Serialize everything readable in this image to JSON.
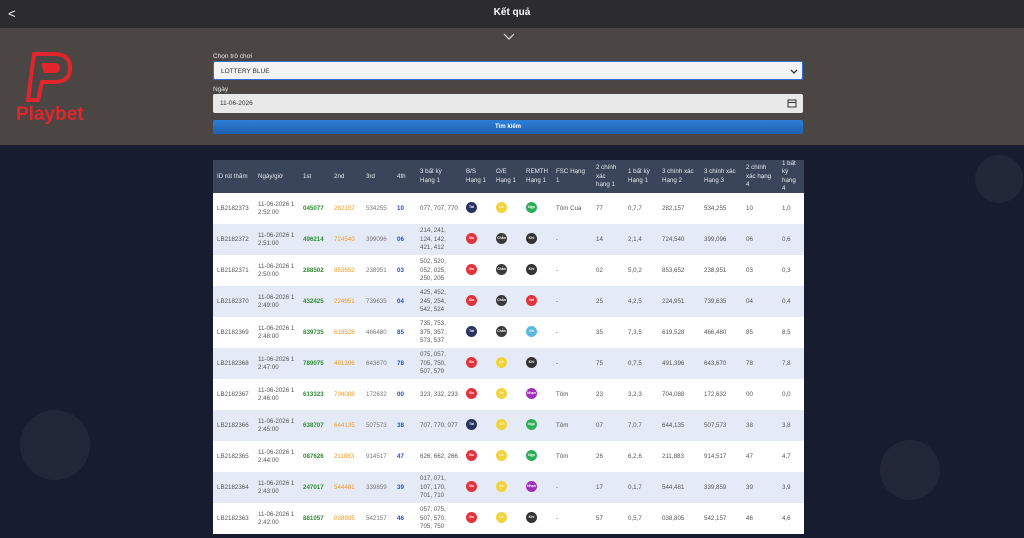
{
  "header": {
    "title": "Kết quả",
    "back": "<"
  },
  "brand": "Playbet",
  "form": {
    "game_label": "Chọn trò chơi",
    "game_value": "LOTTERY BLUE",
    "date_label": "Ngày",
    "date_value": "11-06-2026",
    "button": "Tìm kiếm"
  },
  "table": {
    "columns": [
      "ID rút thăm",
      "Ngày/giờ",
      "1st",
      "2nd",
      "3rd",
      "4th",
      "3 bất kỳ Hạng 1",
      "B/S Hạng 1",
      "O/E Hạng 1",
      "REMTH Hạng 1",
      "FSC Hạng 1",
      "2 chính xác hạng 1",
      "1 bất kỳ Hạng 1",
      "3 chính xác Hạng 2",
      "3 chính xác Hạng 3",
      "2 chính xác hạng 4",
      "1 bất kỳ hạng 4"
    ],
    "rows": [
      [
        "LB2182373",
        "11-06-2026 12:52:00",
        "045077",
        "282157",
        "534255",
        "10",
        "077, 707, 770",
        {
          "text": "Tài",
          "color": "#27325e"
        },
        {
          "text": "Lẻ",
          "color": "#f2d43a"
        },
        {
          "text": "Ngọ",
          "color": "#2fae5a"
        },
        "Tôm Cua",
        "77",
        "0,7,7",
        "282,157",
        "534,255",
        "10",
        "1,0"
      ],
      [
        "LB2182372",
        "11-06-2026 12:51:00",
        "496214",
        "724540",
        "399096",
        "06",
        "214, 241, 124, 142, 421, 412",
        {
          "text": "Xỉu",
          "color": "#e0333d"
        },
        {
          "text": "Chẵn",
          "color": "#3a3a3a"
        },
        {
          "text": "Khỉ",
          "color": "#333333"
        },
        "-",
        "14",
        "2,1,4",
        "724,540",
        "399,096",
        "06",
        "0,6"
      ],
      [
        "LB2182371",
        "11-06-2026 12:50:00",
        "288502",
        "853652",
        "238951",
        "03",
        "502, 520, 052, 025, 250, 205",
        {
          "text": "Xỉu",
          "color": "#e0333d"
        },
        {
          "text": "Chẵn",
          "color": "#3a3a3a"
        },
        {
          "text": "Khỉ",
          "color": "#333333"
        },
        "-",
        "02",
        "5,0,2",
        "853,652",
        "238,951",
        "03",
        "0,3"
      ],
      [
        "LB2182370",
        "11-06-2026 12:49:00",
        "432425",
        "224951",
        "739635",
        "04",
        "425, 452, 245, 254, 542, 524",
        {
          "text": "Xỉu",
          "color": "#e0333d"
        },
        {
          "text": "Chẵn",
          "color": "#3a3a3a"
        },
        {
          "text": "Voi",
          "color": "#e0333d"
        },
        "-",
        "25",
        "4,2,5",
        "224,951",
        "739,635",
        "04",
        "0,4"
      ],
      [
        "LB2182369",
        "11-06-2026 12:48:00",
        "839735",
        "619528",
        "466480",
        "85",
        "735, 753, 375, 357, 573, 537",
        {
          "text": "Tài",
          "color": "#27325e"
        },
        {
          "text": "Chẵn",
          "color": "#3a3a3a"
        },
        {
          "text": "Gà",
          "color": "#5bb7e0"
        },
        "-",
        "35",
        "7,3,5",
        "619,528",
        "466,480",
        "85",
        "8,5"
      ],
      [
        "LB2182368",
        "11-06-2026 12:47:00",
        "789075",
        "491396",
        "643670",
        "78",
        "075, 057, 705, 750, 507, 570",
        {
          "text": "Xỉu",
          "color": "#e0333d"
        },
        {
          "text": "Lẻ",
          "color": "#f2d43a"
        },
        {
          "text": "Khỉ",
          "color": "#333333"
        },
        "-",
        "75",
        "0,7,5",
        "491,396",
        "643,670",
        "78",
        "7,8"
      ],
      [
        "LB2182367",
        "11-06-2026 12:46:00",
        "613323",
        "704088",
        "172632",
        "00",
        "323, 332, 233",
        {
          "text": "Xỉu",
          "color": "#e0333d"
        },
        {
          "text": "Lẻ",
          "color": "#f2d43a"
        },
        {
          "text": "Nhạn",
          "color": "#a030b8"
        },
        "Tôm",
        "23",
        "3,2,3",
        "704,088",
        "172,632",
        "00",
        "0,0"
      ],
      [
        "LB2182366",
        "11-06-2026 12:45:00",
        "638707",
        "644135",
        "507573",
        "38",
        "707, 770, 077",
        {
          "text": "Tài",
          "color": "#27325e"
        },
        {
          "text": "Lẻ",
          "color": "#f2d43a"
        },
        {
          "text": "Ngọ",
          "color": "#2fae5a"
        },
        "Tôm",
        "07",
        "7,0,7",
        "644,135",
        "507,573",
        "38",
        "3,8"
      ],
      [
        "LB2182365",
        "11-06-2026 12:44:00",
        "087626",
        "211883",
        "914517",
        "47",
        "626, 662, 266",
        {
          "text": "Xỉu",
          "color": "#e0333d"
        },
        {
          "text": "Lẻ",
          "color": "#f2d43a"
        },
        {
          "text": "Ngọ",
          "color": "#2fae5a"
        },
        "Tôm",
        "26",
        "6,2,6",
        "211,883",
        "914,517",
        "47",
        "4,7"
      ],
      [
        "LB2182364",
        "11-06-2026 12:43:00",
        "247017",
        "544481",
        "339859",
        "39",
        "017, 071, 107, 170, 701, 710",
        {
          "text": "Xỉu",
          "color": "#e0333d"
        },
        {
          "text": "Lẻ",
          "color": "#f2d43a"
        },
        {
          "text": "Nhạn",
          "color": "#a030b8"
        },
        "-",
        "17",
        "0,1,7",
        "544,481",
        "339,859",
        "39",
        "3,9"
      ],
      [
        "LB2182363",
        "11-06-2026 12:42:00",
        "881057",
        "038805",
        "542157",
        "46",
        "057, 075, 507, 570, 705, 750",
        {
          "text": "Xỉu",
          "color": "#e0333d"
        },
        {
          "text": "Lẻ",
          "color": "#f2d43a"
        },
        {
          "text": "Khỉ",
          "color": "#333333"
        },
        "-",
        "57",
        "0,5,7",
        "038,805",
        "542,157",
        "46",
        "4,6"
      ]
    ]
  }
}
